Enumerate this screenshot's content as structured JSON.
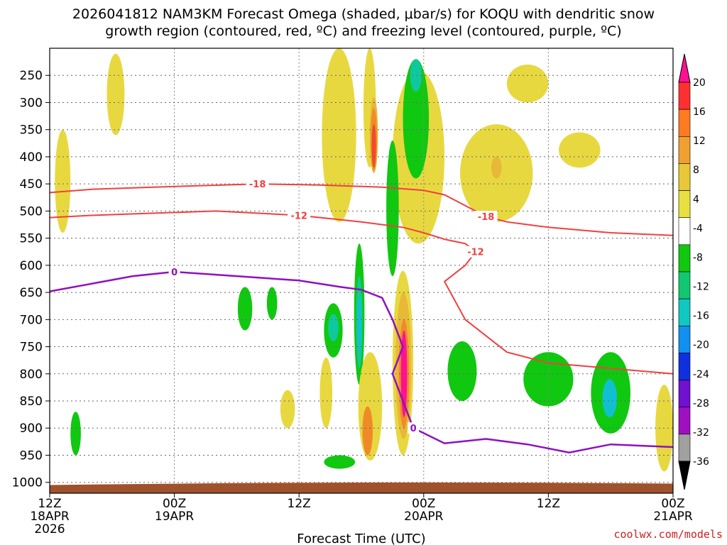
{
  "chart_data": {
    "type": "heatmap",
    "title_line1": "2026041812 NAM3KM Forecast Omega (shaded, μbar/s) for KOQU with dendritic snow",
    "title_line2": "growth region (contoured, red, ºC) and freezing level (contoured, purple, ºC)",
    "xlabel": "Forecast Time (UTC)",
    "credit": "coolwx.com/models",
    "x_hours_range": [
      0,
      60
    ],
    "x_ticks": [
      {
        "hour": 0,
        "line1": "12Z",
        "line2": "18APR",
        "line3": "2026"
      },
      {
        "hour": 12,
        "line1": "00Z",
        "line2": "19APR",
        "line3": ""
      },
      {
        "hour": 24,
        "line1": "12Z",
        "line2": "",
        "line3": ""
      },
      {
        "hour": 36,
        "line1": "00Z",
        "line2": "20APR",
        "line3": ""
      },
      {
        "hour": 48,
        "line1": "12Z",
        "line2": "",
        "line3": ""
      },
      {
        "hour": 60,
        "line1": "00Z",
        "line2": "21APR",
        "line3": ""
      }
    ],
    "y_pressure_levels": [
      "250",
      "300",
      "350",
      "400",
      "450",
      "500",
      "550",
      "600",
      "650",
      "700",
      "750",
      "800",
      "850",
      "900",
      "950",
      "1000"
    ],
    "y_range_hPa": [
      200,
      1020
    ],
    "colorbar": {
      "labels": [
        "20",
        "16",
        "12",
        "8",
        "4",
        "-4",
        "-8",
        "-12",
        "-16",
        "-20",
        "-24",
        "-28",
        "-32",
        "-36"
      ],
      "colors": [
        "#ff1093",
        "#ff3030",
        "#ff7a20",
        "#f0a030",
        "#e8c838",
        "#e8e040",
        "#ffffff",
        "#10c810",
        "#10c870",
        "#10c8c0",
        "#1090f0",
        "#1030e0",
        "#7010d0",
        "#a010c0",
        "#a0a0a0",
        "#000000"
      ]
    },
    "isotherm_dgz": [
      {
        "label": "-18",
        "points": [
          [
            0,
            466
          ],
          [
            4,
            460
          ],
          [
            10,
            456
          ],
          [
            20,
            450
          ],
          [
            26,
            452
          ],
          [
            32,
            456
          ],
          [
            36,
            462
          ],
          [
            38,
            470
          ],
          [
            40,
            490
          ],
          [
            42,
            510
          ],
          [
            44,
            520
          ],
          [
            46,
            525
          ],
          [
            48,
            530
          ],
          [
            54,
            540
          ],
          [
            60,
            545
          ]
        ]
      },
      {
        "label": "-12",
        "points": [
          [
            0,
            512
          ],
          [
            4,
            508
          ],
          [
            10,
            504
          ],
          [
            16,
            500
          ],
          [
            20,
            504
          ],
          [
            24,
            508
          ],
          [
            28,
            516
          ],
          [
            30,
            520
          ],
          [
            34,
            530
          ],
          [
            36,
            540
          ],
          [
            38,
            552
          ],
          [
            40,
            560
          ],
          [
            41,
            575
          ],
          [
            40,
            600
          ],
          [
            38,
            630
          ],
          [
            40,
            700
          ],
          [
            44,
            760
          ],
          [
            48,
            780
          ],
          [
            54,
            790
          ],
          [
            60,
            800
          ]
        ]
      }
    ],
    "freezing_level": {
      "label": "0",
      "points": [
        [
          0,
          648
        ],
        [
          4,
          634
        ],
        [
          8,
          620
        ],
        [
          12,
          612
        ],
        [
          18,
          620
        ],
        [
          24,
          628
        ],
        [
          28,
          640
        ],
        [
          30,
          645
        ],
        [
          32,
          660
        ],
        [
          33,
          700
        ],
        [
          34,
          750
        ],
        [
          33,
          800
        ],
        [
          34,
          850
        ],
        [
          35,
          900
        ],
        [
          38,
          928
        ],
        [
          42,
          920
        ],
        [
          46,
          930
        ],
        [
          50,
          945
        ],
        [
          54,
          930
        ],
        [
          60,
          935
        ]
      ]
    },
    "omega_regions": [
      {
        "value": "4",
        "x": [
          30.2,
          31.4
        ],
        "p": [
          200,
          420
        ]
      },
      {
        "value": "8",
        "x": [
          30.8,
          31.6
        ],
        "p": [
          290,
          430
        ]
      },
      {
        "value": "12",
        "x": [
          30.9,
          31.5
        ],
        "p": [
          310,
          425
        ]
      },
      {
        "value": "16",
        "x": [
          31.0,
          31.4
        ],
        "p": [
          340,
          420
        ]
      },
      {
        "value": "4",
        "x": [
          26.2,
          29.5
        ],
        "p": [
          200,
          520
        ]
      },
      {
        "value": "4",
        "x": [
          5.5,
          7.2
        ],
        "p": [
          210,
          360
        ]
      },
      {
        "value": "4",
        "x": [
          0.5,
          2.0
        ],
        "p": [
          350,
          540
        ]
      },
      {
        "value": "4",
        "x": [
          39.5,
          46.5
        ],
        "p": [
          340,
          520
        ]
      },
      {
        "value": "8",
        "x": [
          42.5,
          43.5
        ],
        "p": [
          400,
          440
        ]
      },
      {
        "value": "4",
        "x": [
          49,
          53
        ],
        "p": [
          355,
          420
        ]
      },
      {
        "value": "4",
        "x": [
          44,
          48
        ],
        "p": [
          230,
          300
        ]
      },
      {
        "value": "4",
        "x": [
          33,
          38
        ],
        "p": [
          240,
          560
        ]
      },
      {
        "value": "-4",
        "x": [
          34.0,
          36.5
        ],
        "p": [
          220,
          440
        ]
      },
      {
        "value": "-8",
        "x": [
          34.7,
          35.8
        ],
        "p": [
          220,
          280
        ]
      },
      {
        "value": "-4",
        "x": [
          32.4,
          33.6
        ],
        "p": [
          370,
          620
        ]
      },
      {
        "value": "-4",
        "x": [
          29.3,
          30.3
        ],
        "p": [
          560,
          820
        ]
      },
      {
        "value": "-8",
        "x": [
          29.5,
          30.1
        ],
        "p": [
          620,
          790
        ]
      },
      {
        "value": "-12",
        "x": [
          29.6,
          30.0
        ],
        "p": [
          660,
          760
        ]
      },
      {
        "value": "-4",
        "x": [
          26.4,
          28.2
        ],
        "p": [
          670,
          770
        ]
      },
      {
        "value": "-8",
        "x": [
          26.8,
          27.8
        ],
        "p": [
          690,
          740
        ]
      },
      {
        "value": "-4",
        "x": [
          18.1,
          19.5
        ],
        "p": [
          640,
          720
        ]
      },
      {
        "value": "-4",
        "x": [
          20.9,
          21.9
        ],
        "p": [
          640,
          700
        ]
      },
      {
        "value": "4",
        "x": [
          33.0,
          35.0
        ],
        "p": [
          610,
          950
        ]
      },
      {
        "value": "8",
        "x": [
          33.3,
          34.8
        ],
        "p": [
          650,
          920
        ]
      },
      {
        "value": "12",
        "x": [
          33.6,
          34.6
        ],
        "p": [
          700,
          900
        ]
      },
      {
        "value": "20",
        "x": [
          33.8,
          34.4
        ],
        "p": [
          720,
          880
        ]
      },
      {
        "value": "4",
        "x": [
          29.7,
          32.0
        ],
        "p": [
          760,
          960
        ]
      },
      {
        "value": "12",
        "x": [
          30.1,
          31.1
        ],
        "p": [
          860,
          950
        ]
      },
      {
        "value": "-4",
        "x": [
          38.3,
          41.1
        ],
        "p": [
          740,
          850
        ]
      },
      {
        "value": "-4",
        "x": [
          45.6,
          50.4
        ],
        "p": [
          760,
          860
        ]
      },
      {
        "value": "-4",
        "x": [
          52.1,
          55.9
        ],
        "p": [
          760,
          910
        ]
      },
      {
        "value": "-12",
        "x": [
          53.2,
          54.6
        ],
        "p": [
          810,
          880
        ]
      },
      {
        "value": "-4",
        "x": [
          2.0,
          3.0
        ],
        "p": [
          870,
          950
        ]
      },
      {
        "value": "4",
        "x": [
          26.0,
          27.2
        ],
        "p": [
          770,
          900
        ]
      },
      {
        "value": "4",
        "x": [
          22.2,
          23.6
        ],
        "p": [
          830,
          900
        ]
      },
      {
        "value": "-4",
        "x": [
          26.4,
          29.4
        ],
        "p": [
          950,
          975
        ]
      },
      {
        "value": "4",
        "x": [
          58.3,
          60.0
        ],
        "p": [
          820,
          980
        ]
      }
    ]
  }
}
